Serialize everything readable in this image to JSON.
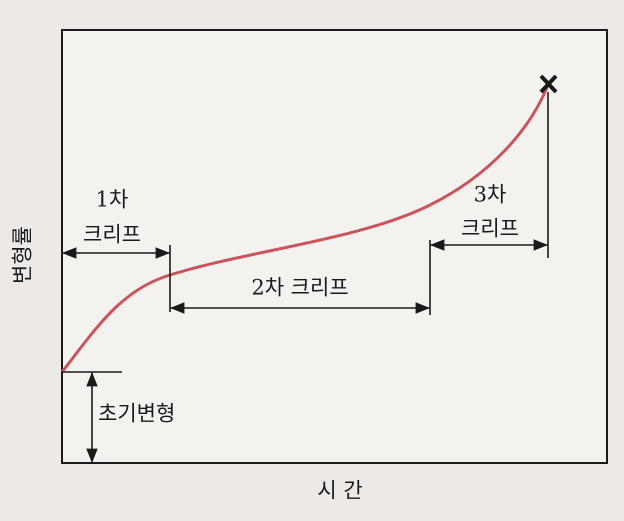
{
  "y_axis_label": "변형률",
  "x_axis_label": "시 간",
  "stages": [
    {
      "label_lines": [
        "1차",
        "크리프"
      ]
    },
    {
      "label": "2차 크리프"
    },
    {
      "label_lines": [
        "3차",
        "크리프"
      ]
    }
  ],
  "initial_strain_label": "초기변형"
}
